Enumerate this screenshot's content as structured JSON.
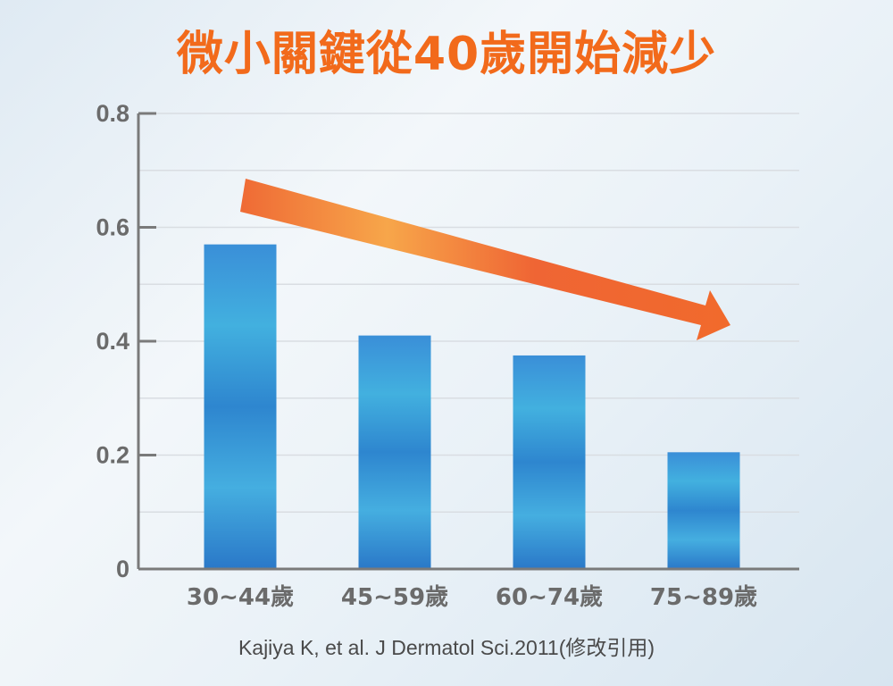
{
  "title": "微小關鍵從40歲開始減少",
  "source": "Kajiya K, et al. J Dermatol Sci.2011(修改引用)",
  "colors": {
    "title": "#f26a1b",
    "bar_light": "#3ba6d6",
    "bar_dark": "#2f7ccc",
    "arrow_start": "#f39a3c",
    "arrow_end": "#ee5a2a",
    "axis": "#7a7a7a",
    "grid": "#d9dde2"
  },
  "chart_data": {
    "type": "bar",
    "title": "微小關鍵從40歲開始減少",
    "xlabel": "",
    "ylabel": "",
    "categories": [
      "30~44歲",
      "45~59歲",
      "60~74歲",
      "75~89歲"
    ],
    "values": [
      0.57,
      0.41,
      0.375,
      0.205
    ],
    "ylim": [
      0,
      0.8
    ],
    "yticks": [
      0,
      0.2,
      0.4,
      0.6,
      0.8
    ],
    "ytick_labels": [
      "0",
      "0.2",
      "0.4",
      "0.6",
      "0.8"
    ],
    "grid": true,
    "annotations": [
      {
        "type": "trend-arrow",
        "direction": "decreasing"
      }
    ]
  }
}
